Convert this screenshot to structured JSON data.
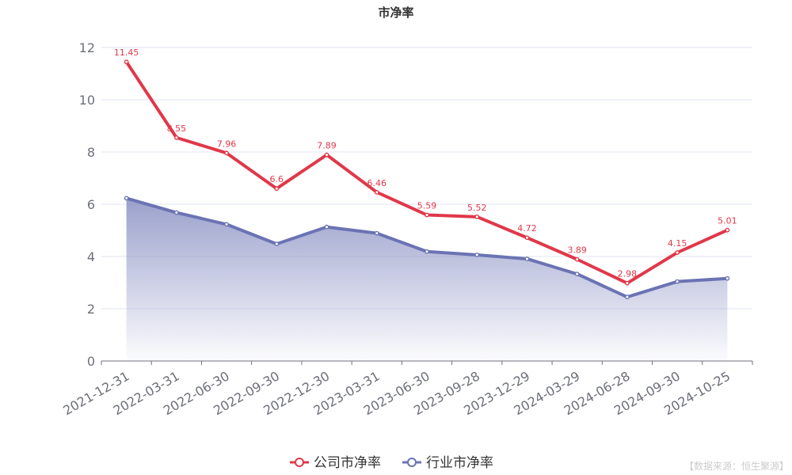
{
  "chart_data": {
    "type": "line",
    "title": "市净率",
    "categories": [
      "2021-12-31",
      "2022-03-31",
      "2022-06-30",
      "2022-09-30",
      "2022-12-30",
      "2023-03-31",
      "2023-06-30",
      "2023-09-28",
      "2023-12-29",
      "2024-03-29",
      "2024-06-28",
      "2024-09-30",
      "2024-10-25"
    ],
    "series": [
      {
        "name": "公司市净率",
        "values": [
          11.45,
          8.55,
          7.96,
          6.6,
          7.89,
          6.46,
          5.59,
          5.52,
          4.72,
          3.89,
          2.98,
          4.15,
          5.01
        ],
        "labels": [
          "11.45",
          "8.55",
          "7.96",
          "6.6",
          "7.89",
          "6.46",
          "5.59",
          "5.52",
          "4.72",
          "3.89",
          "2.98",
          "4.15",
          "5.01"
        ],
        "color": "#e0384a"
      },
      {
        "name": "行业市净率",
        "values": [
          6.23,
          5.68,
          5.23,
          4.48,
          5.13,
          4.89,
          4.19,
          4.06,
          3.91,
          3.33,
          2.45,
          3.04,
          3.16
        ],
        "color": "#6b73b4",
        "area": true
      }
    ],
    "yticks": [
      "0",
      "2",
      "4",
      "6",
      "8",
      "10",
      "12"
    ],
    "ylim": [
      0,
      12
    ],
    "grid": true,
    "legend": "bottom"
  },
  "source": "【数据来源：恒生聚源】"
}
